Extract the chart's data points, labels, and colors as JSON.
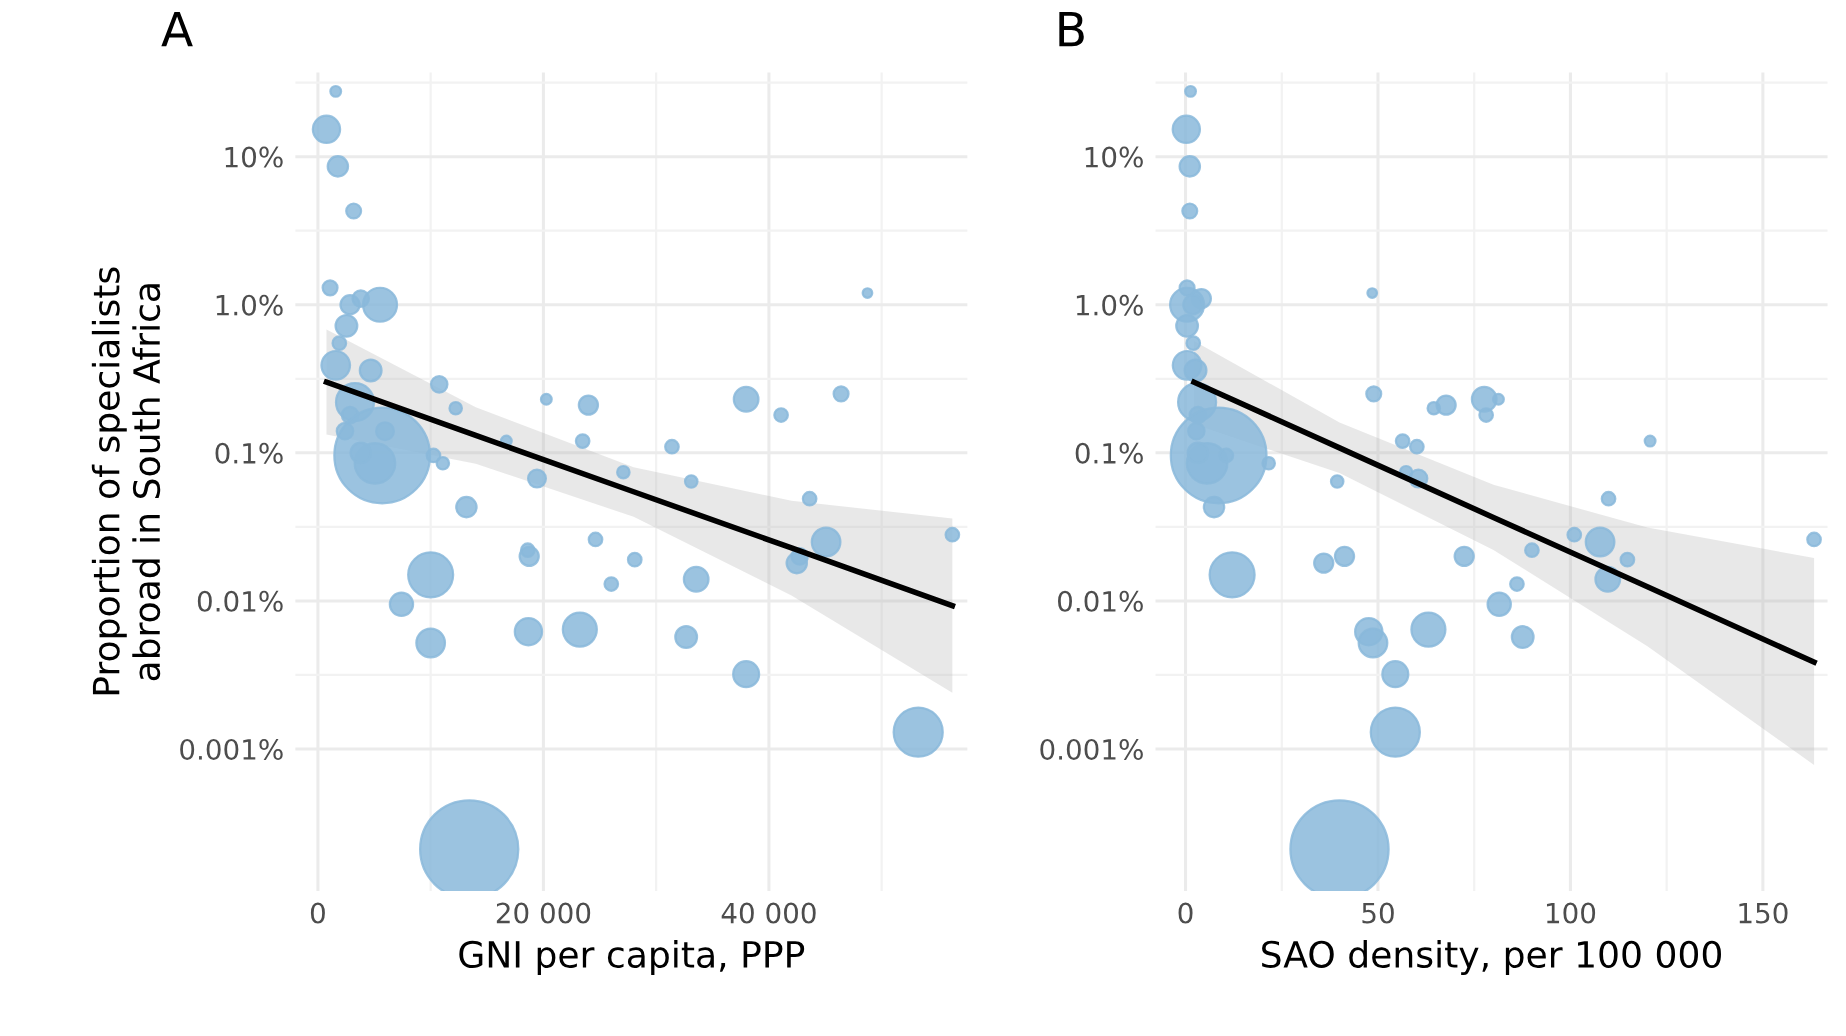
{
  "chart_data": [
    {
      "type": "bubble",
      "title": "A",
      "xlabel": "GNI per capita, PPP",
      "ylabel": "Proportion of specialists\nabroad in South Africa",
      "log": "y",
      "grid": true,
      "xlim": [
        -2000,
        57600
      ],
      "xticks": [
        0,
        {
          "value": 20000,
          "label": "20 000"
        },
        {
          "value": 40000,
          "label": "40 000"
        }
      ],
      "ylim": [
        0.00011,
        37
      ],
      "yticks": [
        {
          "value": 0.001,
          "label": "0.001%"
        },
        {
          "value": 0.01,
          "label": "0.01%"
        },
        {
          "value": 0.1,
          "label": "0.1%"
        },
        {
          "value": 1,
          "label": "1.0%"
        },
        {
          "value": 10,
          "label": "10%"
        }
      ],
      "series": [
        {
          "color": "#8ab9da",
          "x": [
            1580,
            760,
            1770,
            3170,
            1080,
            2850,
            3800,
            5510,
            2530,
            1900,
            1580,
            4680,
            10760,
            12220,
            20260,
            23990,
            37980,
            41080,
            46400,
            48740,
            3290,
            2850,
            2400,
            5950,
            5700,
            5060,
            3800,
            10250,
            11080,
            16710,
            23480,
            31400,
            27090,
            33110,
            19430,
            13170,
            43610,
            56270,
            45070,
            42730,
            42470,
            24620,
            28100,
            18740,
            18610,
            26020,
            33550,
            10000,
            7410,
            10000,
            18670,
            23230,
            32660,
            37980,
            53240,
            13420
          ],
          "values": [
            27.6,
            15.3,
            8.6,
            4.3,
            1.3,
            1.0,
            1.1,
            1.0,
            0.72,
            0.55,
            0.39,
            0.36,
            0.29,
            0.2,
            0.23,
            0.21,
            0.23,
            0.18,
            0.25,
            1.2,
            0.22,
            0.18,
            0.14,
            0.14,
            0.096,
            0.085,
            0.1,
            0.096,
            0.085,
            0.12,
            0.12,
            0.11,
            0.074,
            0.064,
            0.067,
            0.043,
            0.049,
            0.028,
            0.025,
            0.02,
            0.018,
            0.026,
            0.019,
            0.02,
            0.022,
            0.013,
            0.014,
            0.015,
            0.0095,
            0.0052,
            0.0062,
            0.0064,
            0.0057,
            0.0032,
            0.0013,
            0.00021
          ],
          "sizes": [
            0.012,
            0.077,
            0.043,
            0.023,
            0.023,
            0.038,
            0.028,
            0.12,
            0.049,
            0.019,
            0.085,
            0.049,
            0.028,
            0.016,
            0.012,
            0.038,
            0.063,
            0.019,
            0.023,
            0.0095,
            0.15,
            0.028,
            0.028,
            0.033,
            0.95,
            0.17,
            0.043,
            0.019,
            0.016,
            0.012,
            0.019,
            0.019,
            0.016,
            0.016,
            0.033,
            0.043,
            0.019,
            0.019,
            0.085,
            0.028,
            0.043,
            0.019,
            0.019,
            0.038,
            0.019,
            0.019,
            0.063,
            0.21,
            0.056,
            0.085,
            0.077,
            0.12,
            0.049,
            0.07,
            0.25,
            1
          ]
        },
        {
          "type": "line",
          "color": "#000000",
          "x": [
            760,
            14000,
            28000,
            42000,
            56270
          ],
          "values": [
            0.3,
            0.131,
            0.0546,
            0.0228,
            0.0093
          ],
          "lower": [
            0.133,
            0.0845,
            0.037,
            0.0109,
            0.0024
          ],
          "upper": [
            0.68,
            0.203,
            0.08,
            0.0475,
            0.036
          ]
        }
      ]
    },
    {
      "type": "bubble",
      "title": "B",
      "xlabel": "SAO density, per 100 000",
      "log": "y",
      "grid": true,
      "xlim": [
        -7.8,
        166.8
      ],
      "xticks": [
        0,
        50,
        100,
        150
      ],
      "ylim": [
        0.00011,
        37
      ],
      "yticks": [
        {
          "value": 0.001,
          "label": "0.001%"
        },
        {
          "value": 0.01,
          "label": "0.01%"
        },
        {
          "value": 0.1,
          "label": "0.1%"
        },
        {
          "value": 1,
          "label": "1.0%"
        },
        {
          "value": 10,
          "label": "10%"
        }
      ],
      "series": [
        {
          "color": "#8ab9da",
          "x": [
            1.3,
            0.2,
            1.1,
            1.1,
            0.4,
            0.4,
            4.1,
            1.9,
            0.4,
            2.0,
            0.4,
            2.6,
            48.9,
            48.5,
            67.7,
            64.5,
            77.6,
            81.3,
            78.1,
            3.0,
            3.2,
            2.8,
            8.6,
            5.6,
            3.2,
            10.6,
            21.6,
            56.4,
            60.1,
            120.7,
            57.3,
            39.4,
            60.5,
            7.4,
            109.9,
            163.3,
            107.7,
            101,
            114.8,
            109.7,
            90,
            72.4,
            86.1,
            35.9,
            41.3,
            12.1,
            81.5,
            87.6,
            47.6,
            48.7,
            63.1,
            54.5,
            54.5,
            40
          ],
          "values": [
            27.6,
            15.3,
            8.6,
            4.3,
            1.3,
            1.0,
            1.1,
            1.0,
            0.72,
            0.55,
            0.39,
            0.36,
            0.25,
            1.2,
            0.21,
            0.2,
            0.23,
            0.23,
            0.18,
            0.22,
            0.18,
            0.14,
            0.096,
            0.085,
            0.1,
            0.096,
            0.085,
            0.12,
            0.11,
            0.12,
            0.074,
            0.064,
            0.067,
            0.043,
            0.049,
            0.026,
            0.025,
            0.028,
            0.019,
            0.014,
            0.022,
            0.02,
            0.013,
            0.018,
            0.02,
            0.015,
            0.0095,
            0.0057,
            0.0062,
            0.0052,
            0.0064,
            0.0032,
            0.0013,
            0.00021
          ],
          "sizes": [
            0.012,
            0.077,
            0.043,
            0.023,
            0.023,
            0.12,
            0.038,
            0.038,
            0.049,
            0.019,
            0.085,
            0.049,
            0.023,
            0.0095,
            0.038,
            0.016,
            0.063,
            0.012,
            0.019,
            0.15,
            0.028,
            0.028,
            0.95,
            0.17,
            0.043,
            0.019,
            0.016,
            0.019,
            0.019,
            0.012,
            0.016,
            0.016,
            0.033,
            0.043,
            0.019,
            0.019,
            0.085,
            0.019,
            0.019,
            0.063,
            0.019,
            0.038,
            0.019,
            0.038,
            0.038,
            0.21,
            0.056,
            0.049,
            0.077,
            0.085,
            0.12,
            0.07,
            0.25,
            1
          ]
        },
        {
          "type": "line",
          "color": "#000000",
          "x": [
            2.2,
            40,
            80,
            120,
            163.3
          ],
          "values": [
            0.3,
            0.108,
            0.0366,
            0.01245,
            0.00386
          ],
          "lower": [
            0.156,
            0.073,
            0.0221,
            0.00495,
            0.00078
          ],
          "upper": [
            0.57,
            0.16,
            0.0608,
            0.0313,
            0.0195
          ]
        }
      ]
    }
  ]
}
